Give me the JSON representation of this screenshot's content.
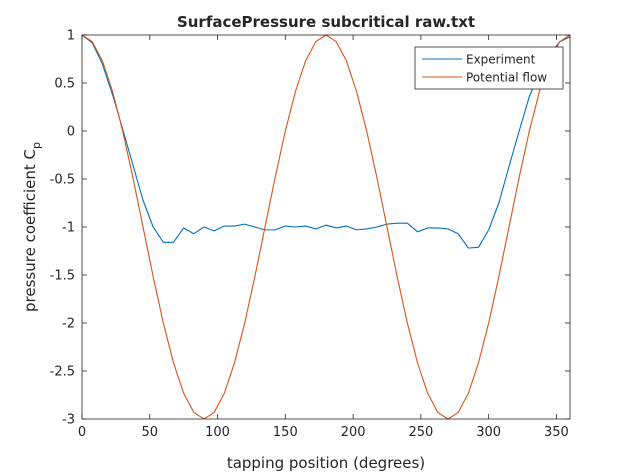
{
  "chart_data": {
    "type": "line",
    "title": "SurfacePressure subcritical raw.txt",
    "xlabel": "tapping position (degrees)",
    "ylabel_main": "pressure coefficient C",
    "ylabel_sub": "p",
    "xlim": [
      0,
      360
    ],
    "ylim": [
      -3,
      1
    ],
    "xticks": [
      0,
      50,
      100,
      150,
      200,
      250,
      300,
      350
    ],
    "yticks": [
      1,
      0.5,
      0,
      -0.5,
      -1,
      -1.5,
      -2,
      -2.5,
      -3
    ],
    "xtick_labels": [
      "0",
      "50",
      "100",
      "150",
      "200",
      "250",
      "300",
      "350"
    ],
    "ytick_labels": [
      "1",
      "0.5",
      "0",
      "-0.5",
      "-1",
      "-1.5",
      "-2",
      "-2.5",
      "-3"
    ],
    "grid": false,
    "legend_position": "top-right",
    "series": [
      {
        "name": "Experiment",
        "color": "#0072BD",
        "x": [
          0,
          7.5,
          15,
          22.5,
          30,
          37.5,
          45,
          52.5,
          60,
          67.5,
          75,
          82.5,
          90,
          97.5,
          105,
          112.5,
          120,
          127.5,
          135,
          142.5,
          150,
          157.5,
          165,
          172.5,
          180,
          187.5,
          195,
          202.5,
          210,
          217.5,
          225,
          232.5,
          240,
          247.5,
          255,
          262.5,
          270,
          277.5,
          285,
          292.5,
          300,
          307.5,
          315,
          322.5,
          330,
          337.5,
          345,
          352.5,
          360
        ],
        "y": [
          1.0,
          0.92,
          0.7,
          0.38,
          0.02,
          -0.35,
          -0.72,
          -1.0,
          -1.16,
          -1.16,
          -1.01,
          -1.07,
          -1.0,
          -1.04,
          -0.99,
          -0.99,
          -0.97,
          -1.0,
          -1.03,
          -1.03,
          -0.99,
          -1.0,
          -0.99,
          -1.02,
          -0.98,
          -1.01,
          -0.99,
          -1.03,
          -1.02,
          -1.0,
          -0.97,
          -0.96,
          -0.96,
          -1.05,
          -1.01,
          -1.01,
          -1.02,
          -1.07,
          -1.22,
          -1.21,
          -1.03,
          -0.75,
          -0.37,
          0.0,
          0.36,
          0.6,
          0.8,
          0.93,
          0.98
        ]
      },
      {
        "name": "Potential flow",
        "color": "#D95319",
        "formula": "1 - 4 sin^2(theta)",
        "x": [
          0,
          7.5,
          15,
          22.5,
          30,
          37.5,
          45,
          52.5,
          60,
          67.5,
          75,
          82.5,
          90,
          97.5,
          105,
          112.5,
          120,
          127.5,
          135,
          142.5,
          150,
          157.5,
          165,
          172.5,
          180,
          187.5,
          195,
          202.5,
          210,
          217.5,
          225,
          232.5,
          240,
          247.5,
          255,
          262.5,
          270,
          277.5,
          285,
          292.5,
          300,
          307.5,
          315,
          322.5,
          330,
          337.5,
          345,
          352.5,
          360
        ],
        "y": [
          1.0,
          0.932,
          0.732,
          0.414,
          0.0,
          -0.482,
          -1.0,
          -1.518,
          -2.0,
          -2.414,
          -2.732,
          -2.932,
          -3.0,
          -2.932,
          -2.732,
          -2.414,
          -2.0,
          -1.518,
          -1.0,
          -0.482,
          0.0,
          0.414,
          0.732,
          0.932,
          1.0,
          0.932,
          0.732,
          0.414,
          0.0,
          -0.482,
          -1.0,
          -1.518,
          -2.0,
          -2.414,
          -2.732,
          -2.932,
          -3.0,
          -2.932,
          -2.732,
          -2.414,
          -2.0,
          -1.518,
          -1.0,
          -0.482,
          0.0,
          0.414,
          0.732,
          0.932,
          1.0
        ]
      }
    ]
  }
}
